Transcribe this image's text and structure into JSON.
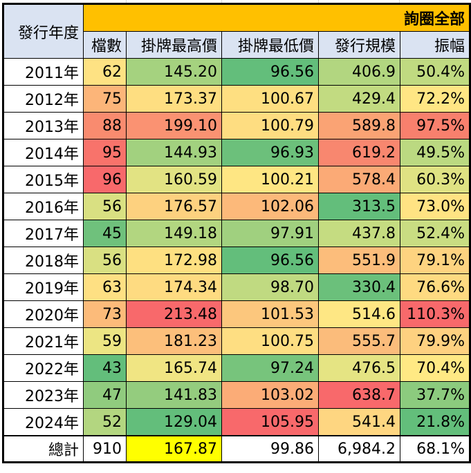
{
  "sheet": {
    "corner_header": "發行年度",
    "group_header": "詢圈全部",
    "group_header_color": "#ffc000",
    "header_bg_color": "#dae3f2",
    "columns": [
      "檔數",
      "掛牌最高價",
      "掛牌最低價",
      "發行規模",
      "振幅"
    ],
    "rows": [
      {
        "year": "2011年",
        "count": "62",
        "high": "145.20",
        "low": "96.56",
        "size": "406.9",
        "amp": "50.4%",
        "colors": [
          "#fee283",
          "#a5d27f",
          "#63be7b",
          "#b2d680",
          "#c0da81"
        ]
      },
      {
        "year": "2012年",
        "count": "75",
        "high": "173.37",
        "low": "100.67",
        "size": "429.4",
        "amp": "72.2%",
        "colors": [
          "#fcb579",
          "#fede81",
          "#fedf81",
          "#c2db81",
          "#ffe684"
        ]
      },
      {
        "year": "2013年",
        "count": "88",
        "high": "199.10",
        "low": "100.79",
        "size": "589.8",
        "amp": "97.5%",
        "colors": [
          "#f98b6f",
          "#fa9272",
          "#fedd81",
          "#faa374",
          "#f8806d"
        ]
      },
      {
        "year": "2014年",
        "count": "95",
        "high": "144.93",
        "low": "96.93",
        "size": "619.2",
        "amp": "49.5%",
        "colors": [
          "#f8736b",
          "#a2d17f",
          "#6cc07b",
          "#f8876f",
          "#bbd981"
        ]
      },
      {
        "year": "2015年",
        "count": "96",
        "high": "160.59",
        "low": "100.21",
        "size": "578.4",
        "amp": "60.3%",
        "colors": [
          "#f8696b",
          "#e2e383",
          "#fee683",
          "#fbaa76",
          "#dfe283"
        ]
      },
      {
        "year": "2016年",
        "count": "56",
        "high": "176.57",
        "low": "102.06",
        "size": "313.5",
        "amp": "73.0%",
        "colors": [
          "#d9e082",
          "#fdd17f",
          "#fcb97a",
          "#63be7b",
          "#ffe383"
        ]
      },
      {
        "year": "2017年",
        "count": "45",
        "high": "149.18",
        "low": "97.91",
        "size": "437.8",
        "amp": "52.4%",
        "colors": [
          "#6fc17c",
          "#b2d680",
          "#a0d07f",
          "#c5dc81",
          "#c9dd82"
        ]
      },
      {
        "year": "2018年",
        "count": "56",
        "high": "172.98",
        "low": "96.56",
        "size": "551.9",
        "amp": "79.1%",
        "colors": [
          "#d9e082",
          "#fee081",
          "#63be7b",
          "#fcbd7b",
          "#fed380"
        ]
      },
      {
        "year": "2019年",
        "count": "63",
        "high": "174.34",
        "low": "98.70",
        "size": "330.4",
        "amp": "76.6%",
        "colors": [
          "#fee083",
          "#fedb81",
          "#c0da81",
          "#6bc07b",
          "#feda81"
        ]
      },
      {
        "year": "2020年",
        "count": "73",
        "high": "213.48",
        "low": "101.53",
        "size": "514.6",
        "amp": "110.3%",
        "colors": [
          "#fcbb7a",
          "#f8696b",
          "#fcc77d",
          "#fee784",
          "#f8696b"
        ]
      },
      {
        "year": "2021年",
        "count": "59",
        "high": "181.23",
        "low": "100.75",
        "size": "555.7",
        "amp": "79.9%",
        "colors": [
          "#ece583",
          "#fcbf7b",
          "#fede82",
          "#fbbc7b",
          "#fed180"
        ]
      },
      {
        "year": "2022年",
        "count": "43",
        "high": "165.74",
        "low": "97.24",
        "size": "476.5",
        "amp": "70.4%",
        "colors": [
          "#63be7b",
          "#f0e583",
          "#77c47c",
          "#e5e483",
          "#ffe984"
        ]
      },
      {
        "year": "2023年",
        "count": "47",
        "high": "141.83",
        "low": "103.02",
        "size": "638.7",
        "amp": "37.7%",
        "colors": [
          "#90cb7e",
          "#94cc7e",
          "#fbac77",
          "#f8696b",
          "#8ccb7e"
        ]
      },
      {
        "year": "2024年",
        "count": "52",
        "high": "129.04",
        "low": "105.95",
        "size": "541.4",
        "amp": "21.8%",
        "colors": [
          "#b3d680",
          "#63be7b",
          "#f8696b",
          "#fed681",
          "#63be7b"
        ]
      }
    ],
    "total": {
      "label": "總計",
      "count": "910",
      "high": "167.87",
      "low": "99.86",
      "size": "6,984.2",
      "amp": "68.1%",
      "high_highlight_color": "#ffff00"
    }
  }
}
